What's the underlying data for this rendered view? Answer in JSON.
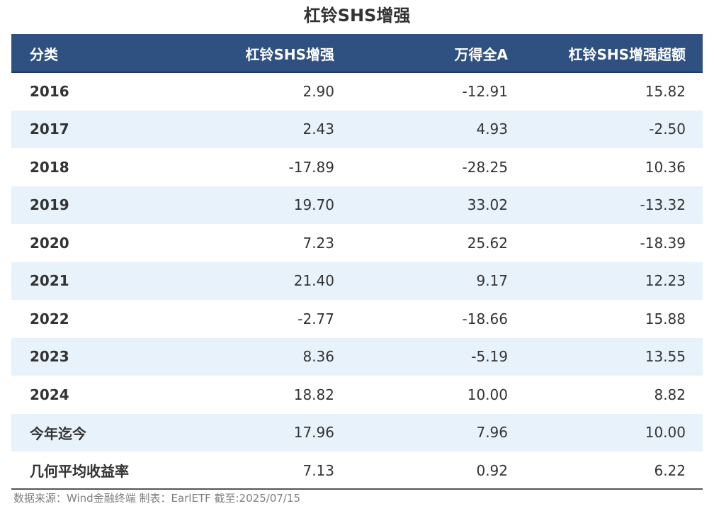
{
  "chart_data": {
    "type": "table",
    "title": "杠铃SHS增强",
    "columns": [
      "分类",
      "杠铃SHS增强",
      "万得全A",
      "杠铃SHS增强超额"
    ],
    "rows": [
      [
        "2016",
        "2.90",
        "-12.91",
        "15.82"
      ],
      [
        "2017",
        "2.43",
        "4.93",
        "-2.50"
      ],
      [
        "2018",
        "-17.89",
        "-28.25",
        "10.36"
      ],
      [
        "2019",
        "19.70",
        "33.02",
        "-13.32"
      ],
      [
        "2020",
        "7.23",
        "25.62",
        "-18.39"
      ],
      [
        "2021",
        "21.40",
        "9.17",
        "12.23"
      ],
      [
        "2022",
        "-2.77",
        "-18.66",
        "15.88"
      ],
      [
        "2023",
        "8.36",
        "-5.19",
        "13.55"
      ],
      [
        "2024",
        "18.82",
        "10.00",
        "8.82"
      ],
      [
        "今年迄今",
        "17.96",
        "7.96",
        "10.00"
      ],
      [
        "几何平均收益率",
        "7.13",
        "0.92",
        "6.22"
      ]
    ],
    "source": "数据来源：Wind金融终端 制表：EarlETF 截至:2025/07/15"
  },
  "colors": {
    "header_bg": "#2f5181",
    "stripe_bg": "#e8f2fb",
    "text": "#333333"
  }
}
